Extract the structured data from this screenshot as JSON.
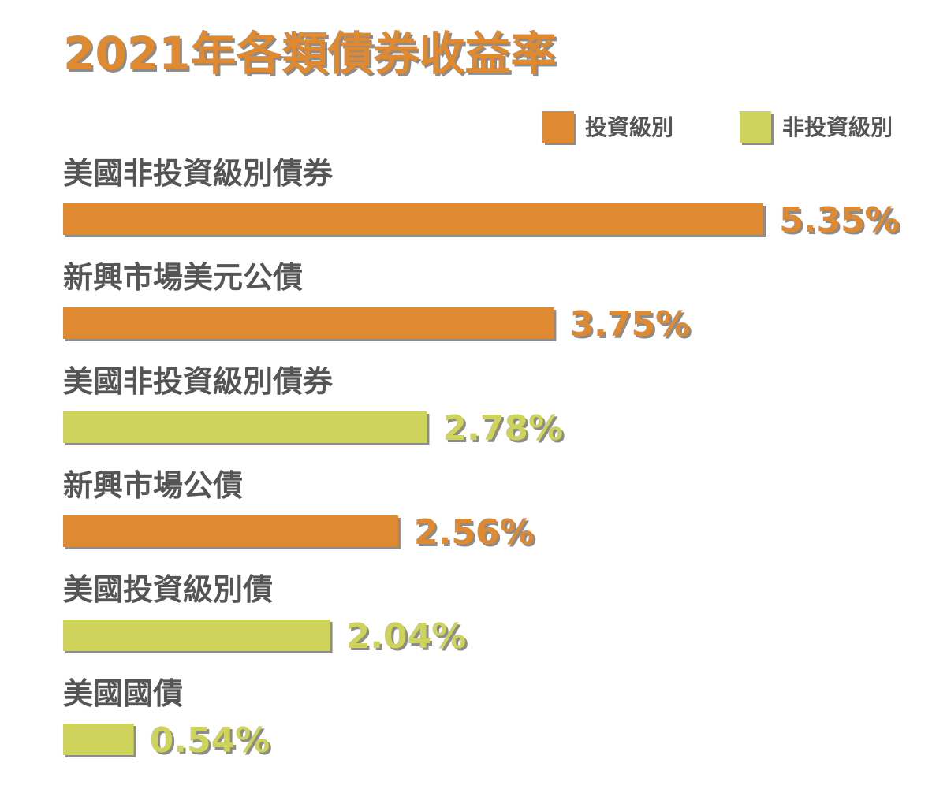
{
  "chart_data": {
    "type": "bar",
    "orientation": "horizontal",
    "title": "2021年各類債券收益率",
    "legend": {
      "placement": "top-right",
      "items": [
        {
          "label": "投資級別",
          "color": "#df8931"
        },
        {
          "label": "非投資級別",
          "color": "#cdd35b"
        }
      ]
    },
    "categories": [
      "美國非投資級別債券",
      "新興市場美元公債",
      "美國非投資級別債券",
      "新興市場公債",
      "美國投資級別債",
      "美國國債"
    ],
    "values": [
      5.35,
      3.75,
      2.78,
      2.56,
      2.04,
      0.54
    ],
    "value_labels": [
      "5.35%",
      "3.75%",
      "2.78%",
      "2.56%",
      "2.04%",
      "0.54%"
    ],
    "bar_colors": [
      "#df8931",
      "#df8931",
      "#cdd35b",
      "#df8931",
      "#cdd35b",
      "#cdd35b"
    ],
    "xlim": [
      0,
      5.35
    ],
    "grid": false,
    "shadow_color": "#8c8c8c",
    "label_color": "#555555"
  }
}
